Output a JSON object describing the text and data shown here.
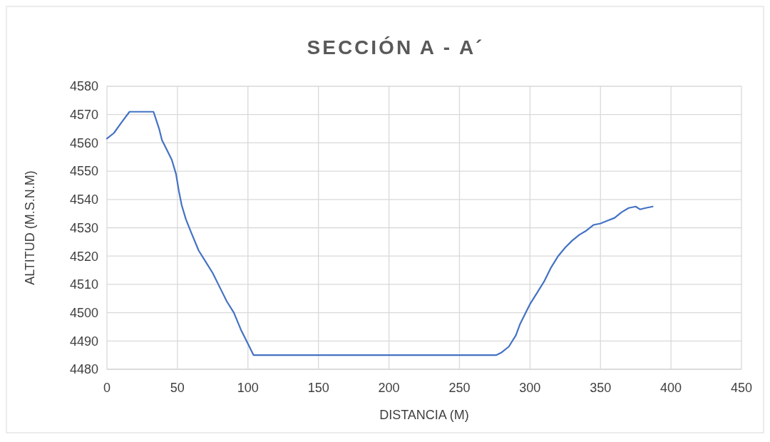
{
  "chart_data": {
    "type": "line",
    "title": "SECCIÓN A - A´",
    "xlabel": "DISTANCIA (M)",
    "ylabel": "ALTITUD (M.S.N.M)",
    "xlim": [
      0,
      450
    ],
    "xticks": [
      0,
      50,
      100,
      150,
      200,
      250,
      300,
      350,
      400,
      450
    ],
    "ylim": [
      4480,
      4580
    ],
    "yticks": [
      4480,
      4490,
      4500,
      4510,
      4520,
      4530,
      4540,
      4550,
      4560,
      4570,
      4580
    ],
    "grid": true,
    "series": [
      {
        "color": "#4472c4",
        "x": [
          0,
          5,
          10,
          16,
          33,
          35,
          37,
          39,
          42,
          46,
          49,
          51,
          53,
          56,
          60,
          65,
          70,
          75,
          80,
          85,
          90,
          95,
          100,
          104,
          276,
          280,
          285,
          290,
          293,
          297,
          300,
          305,
          310,
          315,
          320,
          325,
          330,
          335,
          340,
          345,
          350,
          355,
          360,
          365,
          370,
          375,
          378,
          382,
          387
        ],
        "values": [
          4561.5,
          4563.5,
          4567,
          4571,
          4571,
          4568,
          4565,
          4561,
          4558,
          4554,
          4549,
          4543,
          4538,
          4533,
          4528,
          4522,
          4518,
          4514,
          4509,
          4504,
          4500,
          4494,
          4489,
          4485,
          4485,
          4486,
          4488,
          4492,
          4496,
          4500,
          4503,
          4507,
          4511,
          4516,
          4520,
          4523,
          4525.5,
          4527.5,
          4529,
          4531,
          4531.5,
          4532.5,
          4533.5,
          4535.5,
          4537,
          4537.5,
          4536.5,
          4537,
          4537.5
        ]
      }
    ]
  }
}
